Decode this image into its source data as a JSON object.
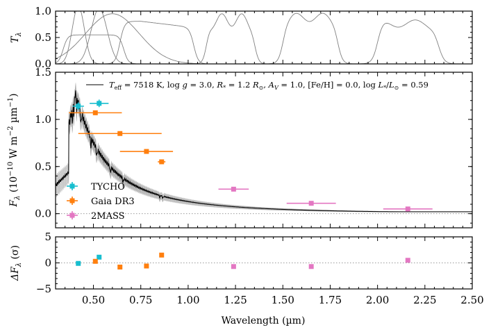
{
  "chart_data": {
    "type": "line",
    "xlabel": "Wavelength (µm)",
    "xlim": [
      0.3,
      2.5
    ],
    "xticks": [
      "0.50",
      "0.75",
      "1.00",
      "1.25",
      "1.50",
      "1.75",
      "2.00",
      "2.25",
      "2.50"
    ],
    "panels": {
      "transmission": {
        "ylabel": "T",
        "ylabel_sub": "λ",
        "ylim": [
          0.0,
          1.0
        ],
        "yticks": [
          "0.0",
          "0.5",
          "1.0"
        ],
        "curve_color": "#808080"
      },
      "flux": {
        "ylabel": "F",
        "ylabel_sub": "λ",
        "ylabel_rest": " (10",
        "ylabel_exp1": "−10",
        "ylabel_mid": " W m",
        "ylabel_exp2": "−2",
        "ylabel_mid2": " µm",
        "ylabel_exp3": "−1",
        "ylabel_end": ")",
        "ylim": [
          -0.15,
          1.5
        ],
        "yticks": [
          "0.0",
          "0.5",
          "1.0",
          "1.5"
        ],
        "zero_line": true,
        "model_legend": "T_eff = 7518 K, log g = 3.0, R_* = 1.2 R_⊙, A_V = 1.0, [Fe/H] = 0.0, log L_*/L_⊙ = 0.59",
        "model_legend_parts": {
          "teff": "T",
          "teff_sub": "eff",
          "teff_val": " = 7518 K, log ",
          "g": "g",
          "g_val": " = 3.0, ",
          "r": "R",
          "r_sub": "*",
          "r_val": " = 1.2 ",
          "rsun": "R",
          "rsun_sub": "⊙",
          "av": ", ",
          "av_a": "A",
          "av_sub": "V",
          "av_val": " = 1.0, [Fe/H] = 0.0, log ",
          "l": "L",
          "l_sub": "*",
          "l_slash": "/",
          "lsun": "L",
          "lsun_sub": "⊙",
          "l_val": " = 0.59"
        },
        "model_color": "#000000",
        "sample_color": "#a0a0a0",
        "series": [
          {
            "name": "TYCHO",
            "color": "#17becf",
            "points": [
              {
                "x": 0.42,
                "y": 1.14,
                "xerr": 0.03,
                "yerr": 0.04
              },
              {
                "x": 0.53,
                "y": 1.17,
                "xerr": 0.05,
                "yerr": 0.04
              }
            ]
          },
          {
            "name": "Gaia DR3",
            "color": "#ff7f0e",
            "points": [
              {
                "x": 0.51,
                "y": 1.07,
                "xerr": 0.14,
                "yerr": 0.02
              },
              {
                "x": 0.64,
                "y": 0.85,
                "xerr": 0.22,
                "yerr": 0.02
              },
              {
                "x": 0.78,
                "y": 0.66,
                "xerr": 0.14,
                "yerr": 0.02
              },
              {
                "x": 0.86,
                "y": 0.55,
                "xerr": 0.02,
                "yerr": 0.02
              }
            ]
          },
          {
            "name": "2MASS",
            "color": "#e377c2",
            "points": [
              {
                "x": 1.24,
                "y": 0.26,
                "xerr": 0.08,
                "yerr": 0.01
              },
              {
                "x": 1.65,
                "y": 0.11,
                "xerr": 0.13,
                "yerr": 0.01
              },
              {
                "x": 2.16,
                "y": 0.05,
                "xerr": 0.13,
                "yerr": 0.01
              }
            ]
          }
        ]
      },
      "residuals": {
        "ylabel": "ΔF",
        "ylabel_sub": "λ",
        "ylabel_rest": " (σ)",
        "ylim": [
          -5,
          5
        ],
        "yticks": [
          "−5",
          "0",
          "5"
        ],
        "zero_line": true,
        "points": [
          {
            "band": "TYCHO",
            "x": 0.42,
            "y": -0.1
          },
          {
            "band": "TYCHO",
            "x": 0.53,
            "y": 1.1
          },
          {
            "band": "Gaia DR3",
            "x": 0.51,
            "y": 0.3
          },
          {
            "band": "Gaia DR3",
            "x": 0.64,
            "y": -0.8
          },
          {
            "band": "Gaia DR3",
            "x": 0.78,
            "y": -0.6
          },
          {
            "band": "Gaia DR3",
            "x": 0.86,
            "y": 1.5
          },
          {
            "band": "2MASS",
            "x": 1.24,
            "y": -0.7
          },
          {
            "band": "2MASS",
            "x": 1.65,
            "y": -0.7
          },
          {
            "band": "2MASS",
            "x": 2.16,
            "y": 0.5
          }
        ]
      }
    },
    "legend_position": "lower-left"
  }
}
